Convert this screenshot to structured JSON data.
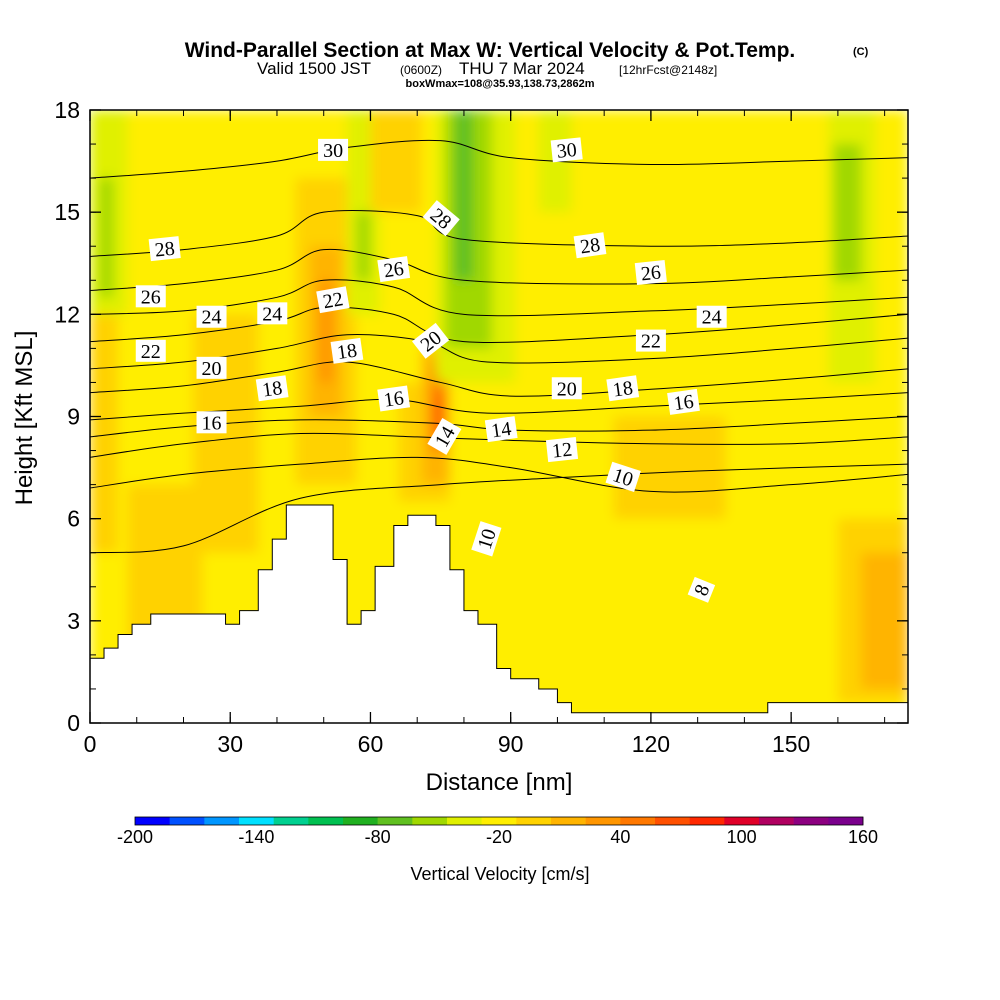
{
  "header": {
    "title_main": "Wind-Parallel Section at Max W: Vertical Velocity & Pot.Temp.",
    "title_c": "(C)",
    "sub_valid": "Valid 1500 JST",
    "sub_utc": "(0600Z)",
    "sub_date": "THU 7 Mar 2024",
    "sub_fcst": "[12hrFcst@2148z]",
    "sub_box": "boxWmax=108@35.93,138.73,2862m"
  },
  "chart_data": {
    "type": "heatmap",
    "xlabel": "Distance [nm]",
    "ylabel": "Height [Kft MSL]",
    "xlim": [
      0,
      175
    ],
    "ylim": [
      0,
      18
    ],
    "x_ticks": [
      0,
      30,
      60,
      90,
      120,
      150
    ],
    "x_tick_labels": [
      "0",
      "30",
      "60",
      "90",
      "120",
      "150"
    ],
    "y_ticks": [
      0,
      3,
      6,
      9,
      12,
      15,
      18
    ],
    "y_tick_labels": [
      "0",
      "3",
      "6",
      "9",
      "12",
      "15",
      "18"
    ],
    "colorbar": {
      "title": "Vertical Velocity [cm/s]",
      "min": -200,
      "max": 160,
      "step": 20,
      "tick_values": [
        -200,
        -140,
        -80,
        -20,
        40,
        100,
        160
      ],
      "tick_labels": [
        "-200",
        "-140",
        "-80",
        "-20",
        "40",
        "100",
        "160"
      ],
      "colors": [
        "#0000ff",
        "#0050ff",
        "#0096ff",
        "#00e0ff",
        "#00d090",
        "#00c050",
        "#20b020",
        "#60c020",
        "#a0d800",
        "#e0f000",
        "#ffee00",
        "#ffd200",
        "#ffb400",
        "#ff9600",
        "#ff7800",
        "#ff5000",
        "#ff2800",
        "#e00028",
        "#b00060",
        "#8c0080",
        "#7a008c"
      ]
    },
    "terrain": [
      [
        0,
        1.9
      ],
      [
        3,
        1.9
      ],
      [
        3,
        2.2
      ],
      [
        6,
        2.2
      ],
      [
        6,
        2.6
      ],
      [
        9,
        2.6
      ],
      [
        9,
        2.9
      ],
      [
        13,
        2.9
      ],
      [
        13,
        3.2
      ],
      [
        29,
        3.2
      ],
      [
        29,
        2.9
      ],
      [
        32,
        2.9
      ],
      [
        32,
        3.3
      ],
      [
        36,
        3.3
      ],
      [
        36,
        4.5
      ],
      [
        39,
        4.5
      ],
      [
        39,
        5.4
      ],
      [
        42,
        5.4
      ],
      [
        42,
        6.4
      ],
      [
        52,
        6.4
      ],
      [
        52,
        4.8
      ],
      [
        55,
        4.8
      ],
      [
        55,
        2.9
      ],
      [
        58,
        2.9
      ],
      [
        58,
        3.3
      ],
      [
        61,
        3.3
      ],
      [
        61,
        4.6
      ],
      [
        65,
        4.6
      ],
      [
        65,
        5.8
      ],
      [
        68,
        5.8
      ],
      [
        68,
        6.1
      ],
      [
        74,
        6.1
      ],
      [
        74,
        5.8
      ],
      [
        77,
        5.8
      ],
      [
        77,
        4.5
      ],
      [
        80,
        4.5
      ],
      [
        80,
        3.3
      ],
      [
        83,
        3.3
      ],
      [
        83,
        2.9
      ],
      [
        87,
        2.9
      ],
      [
        87,
        1.6
      ],
      [
        90,
        1.6
      ],
      [
        90,
        1.3
      ],
      [
        96,
        1.3
      ],
      [
        96,
        1.0
      ],
      [
        100,
        1.0
      ],
      [
        100,
        0.6
      ],
      [
        103,
        0.6
      ],
      [
        103,
        0.3
      ],
      [
        145,
        0.3
      ],
      [
        145,
        0.6
      ],
      [
        175,
        0.6
      ]
    ],
    "w_shading": [
      {
        "x0": 0,
        "x1": 175,
        "y0": 0,
        "y1": 18,
        "w": 0
      },
      {
        "x0": 0,
        "x1": 6,
        "y0": 5,
        "y1": 12,
        "w": 20
      },
      {
        "x0": 8,
        "x1": 24,
        "y0": 0,
        "y1": 7,
        "w": 20
      },
      {
        "x0": 0,
        "x1": 8,
        "y0": 12,
        "y1": 18,
        "w": -20
      },
      {
        "x0": 2,
        "x1": 5,
        "y0": 12.5,
        "y1": 16,
        "w": -40
      },
      {
        "x0": 22,
        "x1": 36,
        "y0": 5,
        "y1": 12,
        "w": 20
      },
      {
        "x0": 44,
        "x1": 57,
        "y0": 7,
        "y1": 16,
        "w": 20
      },
      {
        "x0": 47,
        "x1": 54,
        "y0": 9,
        "y1": 14,
        "w": 40
      },
      {
        "x0": 49,
        "x1": 52,
        "y0": 10,
        "y1": 13,
        "w": 60
      },
      {
        "x0": 55,
        "x1": 62,
        "y0": 12,
        "y1": 18,
        "w": -20
      },
      {
        "x0": 57,
        "x1": 60,
        "y0": 13,
        "y1": 15,
        "w": -40
      },
      {
        "x0": 60,
        "x1": 71,
        "y0": 15,
        "y1": 18,
        "w": 20
      },
      {
        "x0": 66,
        "x1": 77,
        "y0": 6.5,
        "y1": 10,
        "w": 20
      },
      {
        "x0": 71,
        "x1": 77,
        "y0": 7,
        "y1": 11,
        "w": 40
      },
      {
        "x0": 73,
        "x1": 76,
        "y0": 8,
        "y1": 10.5,
        "w": 80
      },
      {
        "x0": 74,
        "x1": 75.5,
        "y0": 8.5,
        "y1": 9.5,
        "w": 100
      },
      {
        "x0": 74,
        "x1": 91,
        "y0": 10,
        "y1": 18,
        "w": -20
      },
      {
        "x0": 76,
        "x1": 86,
        "y0": 11,
        "y1": 18,
        "w": -40
      },
      {
        "x0": 78,
        "x1": 82,
        "y0": 13,
        "y1": 18,
        "w": -60
      },
      {
        "x0": 96,
        "x1": 103,
        "y0": 15,
        "y1": 18,
        "w": -20
      },
      {
        "x0": 112,
        "x1": 136,
        "y0": 6,
        "y1": 9,
        "w": 20
      },
      {
        "x0": 158,
        "x1": 168,
        "y0": 10,
        "y1": 18,
        "w": -20
      },
      {
        "x0": 159,
        "x1": 165,
        "y0": 13,
        "y1": 17,
        "w": -40
      },
      {
        "x0": 160,
        "x1": 175,
        "y0": 0.6,
        "y1": 6,
        "w": 20
      },
      {
        "x0": 165,
        "x1": 175,
        "y0": 1,
        "y1": 5,
        "w": 40
      }
    ],
    "theta_contours": [
      {
        "value": 8,
        "points": [
          [
            0,
            5.0
          ],
          [
            20,
            5.2
          ],
          [
            45,
            6.6
          ],
          [
            75,
            7.0
          ],
          [
            100,
            7.2
          ],
          [
            130,
            7.4
          ],
          [
            175,
            7.6
          ]
        ]
      },
      {
        "value": 10,
        "points": [
          [
            0,
            6.9
          ],
          [
            20,
            7.3
          ],
          [
            45,
            7.6
          ],
          [
            70,
            7.8
          ],
          [
            90,
            7.5
          ],
          [
            120,
            6.8
          ],
          [
            150,
            7.0
          ],
          [
            175,
            7.3
          ]
        ]
      },
      {
        "value": 12,
        "points": [
          [
            0,
            7.8
          ],
          [
            20,
            8.2
          ],
          [
            45,
            8.5
          ],
          [
            70,
            8.4
          ],
          [
            90,
            8.3
          ],
          [
            120,
            8.2
          ],
          [
            150,
            8.2
          ],
          [
            175,
            8.4
          ]
        ]
      },
      {
        "value": 14,
        "points": [
          [
            0,
            8.4
          ],
          [
            20,
            8.7
          ],
          [
            45,
            8.9
          ],
          [
            74,
            8.8
          ],
          [
            90,
            8.6
          ],
          [
            120,
            8.6
          ],
          [
            150,
            8.8
          ],
          [
            175,
            9.0
          ]
        ]
      },
      {
        "value": 16,
        "points": [
          [
            0,
            8.9
          ],
          [
            20,
            9.1
          ],
          [
            45,
            9.3
          ],
          [
            65,
            9.5
          ],
          [
            85,
            9.1
          ],
          [
            120,
            9.3
          ],
          [
            150,
            9.5
          ],
          [
            175,
            9.7
          ]
        ]
      },
      {
        "value": 18,
        "points": [
          [
            0,
            9.7
          ],
          [
            20,
            9.9
          ],
          [
            40,
            10.3
          ],
          [
            55,
            10.6
          ],
          [
            75,
            10.0
          ],
          [
            90,
            9.6
          ],
          [
            120,
            9.8
          ],
          [
            150,
            10.1
          ],
          [
            175,
            10.4
          ]
        ]
      },
      {
        "value": 20,
        "points": [
          [
            0,
            10.4
          ],
          [
            20,
            10.6
          ],
          [
            40,
            11.0
          ],
          [
            55,
            11.4
          ],
          [
            72,
            11.2
          ],
          [
            85,
            10.6
          ],
          [
            120,
            10.7
          ],
          [
            150,
            11.0
          ],
          [
            175,
            11.3
          ]
        ]
      },
      {
        "value": 22,
        "points": [
          [
            0,
            11.2
          ],
          [
            20,
            11.4
          ],
          [
            40,
            11.8
          ],
          [
            50,
            12.2
          ],
          [
            65,
            12.0
          ],
          [
            80,
            11.2
          ],
          [
            120,
            11.4
          ],
          [
            150,
            11.7
          ],
          [
            175,
            12.0
          ]
        ]
      },
      {
        "value": 24,
        "points": [
          [
            0,
            12.0
          ],
          [
            20,
            12.1
          ],
          [
            40,
            12.5
          ],
          [
            50,
            13.0
          ],
          [
            65,
            12.8
          ],
          [
            80,
            12.0
          ],
          [
            120,
            12.1
          ],
          [
            150,
            12.3
          ],
          [
            175,
            12.5
          ]
        ]
      },
      {
        "value": 26,
        "points": [
          [
            0,
            12.7
          ],
          [
            20,
            12.9
          ],
          [
            40,
            13.3
          ],
          [
            50,
            13.9
          ],
          [
            65,
            13.6
          ],
          [
            80,
            13.0
          ],
          [
            120,
            12.9
          ],
          [
            150,
            13.1
          ],
          [
            175,
            13.3
          ]
        ]
      },
      {
        "value": 28,
        "points": [
          [
            0,
            13.7
          ],
          [
            20,
            13.9
          ],
          [
            40,
            14.3
          ],
          [
            50,
            15.0
          ],
          [
            70,
            14.9
          ],
          [
            80,
            14.2
          ],
          [
            120,
            14.0
          ],
          [
            150,
            14.1
          ],
          [
            175,
            14.3
          ]
        ]
      },
      {
        "value": 30,
        "points": [
          [
            0,
            16.0
          ],
          [
            20,
            16.2
          ],
          [
            40,
            16.5
          ],
          [
            55,
            16.9
          ],
          [
            75,
            17.1
          ],
          [
            90,
            16.6
          ],
          [
            120,
            16.4
          ],
          [
            150,
            16.5
          ],
          [
            175,
            16.6
          ]
        ]
      }
    ],
    "contour_labels": [
      {
        "text": "30",
        "x": 52,
        "y": 16.8,
        "angle": 0
      },
      {
        "text": "30",
        "x": 102,
        "y": 16.8,
        "angle": -6
      },
      {
        "text": "28",
        "x": 75,
        "y": 14.8,
        "angle": 40
      },
      {
        "text": "28",
        "x": 16,
        "y": 13.9,
        "angle": -6
      },
      {
        "text": "28",
        "x": 107,
        "y": 14.0,
        "angle": -8
      },
      {
        "text": "26",
        "x": 65,
        "y": 13.3,
        "angle": -8
      },
      {
        "text": "26",
        "x": 13,
        "y": 12.5,
        "angle": 0
      },
      {
        "text": "26",
        "x": 120,
        "y": 13.2,
        "angle": -6
      },
      {
        "text": "24",
        "x": 26,
        "y": 11.9,
        "angle": 0
      },
      {
        "text": "24",
        "x": 39,
        "y": 12.0,
        "angle": 0
      },
      {
        "text": "24",
        "x": 133,
        "y": 11.9,
        "angle": 0
      },
      {
        "text": "22",
        "x": 52,
        "y": 12.4,
        "angle": -10
      },
      {
        "text": "22",
        "x": 13,
        "y": 10.9,
        "angle": 0
      },
      {
        "text": "22",
        "x": 120,
        "y": 11.2,
        "angle": 0
      },
      {
        "text": "20",
        "x": 73,
        "y": 11.2,
        "angle": -38
      },
      {
        "text": "20",
        "x": 26,
        "y": 10.4,
        "angle": 0
      },
      {
        "text": "20",
        "x": 102,
        "y": 9.8,
        "angle": 0
      },
      {
        "text": "18",
        "x": 55,
        "y": 10.9,
        "angle": -8
      },
      {
        "text": "18",
        "x": 39,
        "y": 9.8,
        "angle": -8
      },
      {
        "text": "18",
        "x": 114,
        "y": 9.8,
        "angle": -8
      },
      {
        "text": "16",
        "x": 65,
        "y": 9.5,
        "angle": -8
      },
      {
        "text": "16",
        "x": 26,
        "y": 8.8,
        "angle": 0
      },
      {
        "text": "16",
        "x": 127,
        "y": 9.4,
        "angle": -8
      },
      {
        "text": "14",
        "x": 76,
        "y": 8.4,
        "angle": -60
      },
      {
        "text": "14",
        "x": 88,
        "y": 8.6,
        "angle": -8
      },
      {
        "text": "12",
        "x": 101,
        "y": 8.0,
        "angle": -6
      },
      {
        "text": "10",
        "x": 114,
        "y": 7.2,
        "angle": 18
      },
      {
        "text": "10",
        "x": 85,
        "y": 5.4,
        "angle": -72
      },
      {
        "text": "8",
        "x": 131,
        "y": 3.9,
        "angle": -68
      }
    ]
  }
}
